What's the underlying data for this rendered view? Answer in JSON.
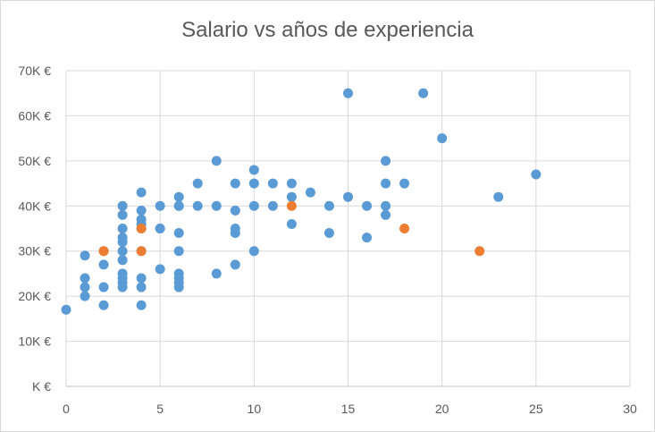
{
  "chart_data": {
    "type": "scatter",
    "title": "Salario vs años de experiencia",
    "xlabel": "",
    "ylabel": "",
    "xlim": [
      0,
      30
    ],
    "ylim": [
      0,
      70000
    ],
    "x_ticks": [
      0,
      5,
      10,
      15,
      20,
      25,
      30
    ],
    "x_tick_labels": [
      "0",
      "5",
      "10",
      "15",
      "20",
      "25",
      "30"
    ],
    "y_ticks": [
      0,
      10000,
      20000,
      30000,
      40000,
      50000,
      60000,
      70000
    ],
    "y_tick_labels": [
      "K €",
      "10K €",
      "20K €",
      "30K €",
      "40K €",
      "50K €",
      "60K €",
      "70K €"
    ],
    "grid": true,
    "legend": "none",
    "series": [
      {
        "color": "#5b9bd5",
        "points": [
          [
            0,
            17000
          ],
          [
            1,
            29000
          ],
          [
            1,
            24000
          ],
          [
            1,
            22000
          ],
          [
            1,
            20000
          ],
          [
            2,
            27000
          ],
          [
            2,
            22000
          ],
          [
            2,
            18000
          ],
          [
            2,
            30000
          ],
          [
            3,
            40000
          ],
          [
            3,
            38000
          ],
          [
            3,
            35000
          ],
          [
            3,
            33000
          ],
          [
            3,
            32000
          ],
          [
            3,
            30000
          ],
          [
            3,
            28000
          ],
          [
            3,
            25000
          ],
          [
            3,
            24000
          ],
          [
            3,
            23000
          ],
          [
            3,
            22000
          ],
          [
            4,
            43000
          ],
          [
            4,
            39000
          ],
          [
            4,
            37000
          ],
          [
            4,
            36000
          ],
          [
            4,
            35000
          ],
          [
            4,
            30000
          ],
          [
            4,
            24000
          ],
          [
            4,
            22000
          ],
          [
            4,
            18000
          ],
          [
            5,
            40000
          ],
          [
            5,
            35000
          ],
          [
            5,
            35000
          ],
          [
            5,
            26000
          ],
          [
            6,
            42000
          ],
          [
            6,
            40000
          ],
          [
            6,
            40000
          ],
          [
            6,
            34000
          ],
          [
            6,
            30000
          ],
          [
            6,
            25000
          ],
          [
            6,
            24000
          ],
          [
            6,
            23000
          ],
          [
            6,
            22000
          ],
          [
            7,
            45000
          ],
          [
            7,
            40000
          ],
          [
            8,
            50000
          ],
          [
            8,
            40000
          ],
          [
            8,
            25000
          ],
          [
            9,
            45000
          ],
          [
            9,
            39000
          ],
          [
            9,
            35000
          ],
          [
            9,
            34000
          ],
          [
            9,
            27000
          ],
          [
            10,
            48000
          ],
          [
            10,
            45000
          ],
          [
            10,
            40000
          ],
          [
            10,
            30000
          ],
          [
            11,
            45000
          ],
          [
            11,
            40000
          ],
          [
            12,
            45000
          ],
          [
            12,
            42000
          ],
          [
            12,
            36000
          ],
          [
            13,
            43000
          ],
          [
            14,
            40000
          ],
          [
            14,
            34000
          ],
          [
            15,
            65000
          ],
          [
            15,
            42000
          ],
          [
            16,
            40000
          ],
          [
            16,
            33000
          ],
          [
            17,
            50000
          ],
          [
            17,
            45000
          ],
          [
            17,
            40000
          ],
          [
            17,
            38000
          ],
          [
            18,
            45000
          ],
          [
            19,
            65000
          ],
          [
            20,
            55000
          ],
          [
            23,
            42000
          ],
          [
            25,
            47000
          ]
        ]
      },
      {
        "color": "#ed7d31",
        "points": [
          [
            2,
            30000
          ],
          [
            4,
            35000
          ],
          [
            4,
            30000
          ],
          [
            12,
            40000
          ],
          [
            18,
            35000
          ],
          [
            22,
            30000
          ]
        ]
      }
    ]
  }
}
